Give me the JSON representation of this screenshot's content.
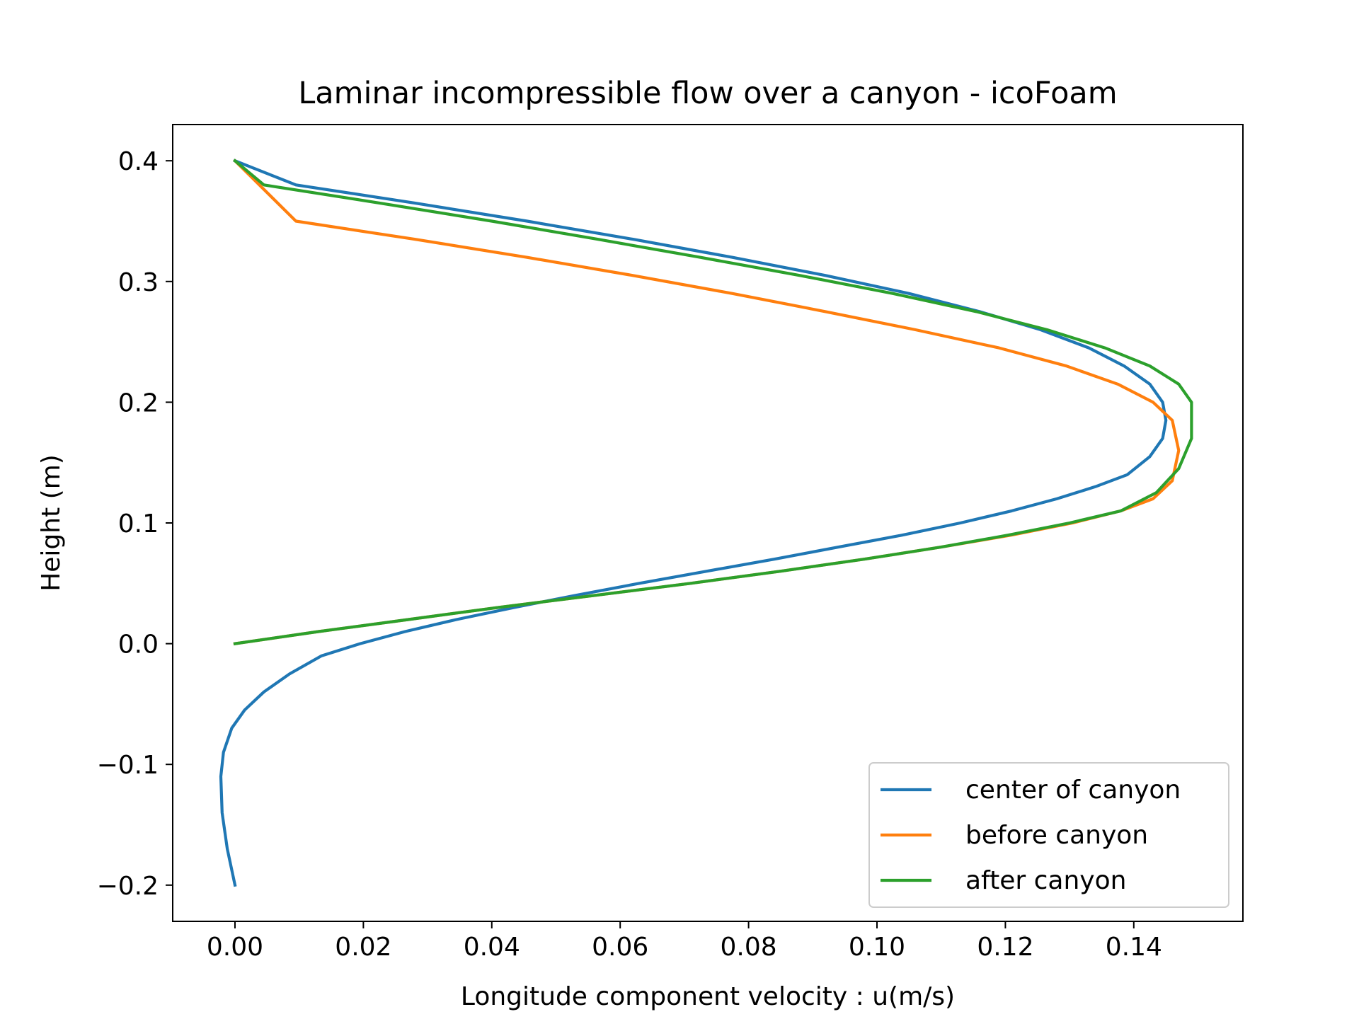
{
  "chart_data": {
    "type": "line",
    "title": "Laminar incompressible flow over a canyon - icoFoam",
    "xlabel": "Longitude component velocity : u(m/s)",
    "ylabel": "Height (m)",
    "xlim": [
      -0.0097,
      0.157
    ],
    "ylim": [
      -0.23,
      0.43
    ],
    "xticks": [
      0.0,
      0.02,
      0.04,
      0.06,
      0.08,
      0.1,
      0.12,
      0.14
    ],
    "xtick_labels": [
      "0.00",
      "0.02",
      "0.04",
      "0.06",
      "0.08",
      "0.10",
      "0.12",
      "0.14"
    ],
    "yticks": [
      -0.2,
      -0.1,
      0.0,
      0.1,
      0.2,
      0.3,
      0.4
    ],
    "ytick_labels": [
      "−0.2",
      "−0.1",
      "0.0",
      "0.1",
      "0.2",
      "0.3",
      "0.4"
    ],
    "grid": false,
    "legend_position": "lower right",
    "series": [
      {
        "name": "center of canyon",
        "color": "#1f77b4",
        "x": [
          0.0,
          -0.0012,
          -0.002,
          -0.0022,
          -0.0018,
          -0.0005,
          0.0015,
          0.0045,
          0.0085,
          0.0135,
          0.0195,
          0.0265,
          0.0345,
          0.0435,
          0.053,
          0.063,
          0.0735,
          0.084,
          0.094,
          0.104,
          0.113,
          0.121,
          0.128,
          0.134,
          0.139,
          0.1425,
          0.1445,
          0.145,
          0.1445,
          0.1425,
          0.1385,
          0.133,
          0.1255,
          0.116,
          0.105,
          0.092,
          0.0775,
          0.062,
          0.0455,
          0.028,
          0.0095,
          0.0
        ],
        "y": [
          -0.2,
          -0.17,
          -0.14,
          -0.11,
          -0.09,
          -0.07,
          -0.055,
          -0.04,
          -0.025,
          -0.01,
          0.0,
          0.01,
          0.02,
          0.03,
          0.04,
          0.05,
          0.06,
          0.07,
          0.08,
          0.09,
          0.1,
          0.11,
          0.12,
          0.13,
          0.14,
          0.155,
          0.17,
          0.185,
          0.2,
          0.215,
          0.23,
          0.245,
          0.26,
          0.275,
          0.29,
          0.305,
          0.32,
          0.335,
          0.35,
          0.365,
          0.38,
          0.4
        ]
      },
      {
        "name": "before canyon",
        "color": "#ff7f0e",
        "x": [
          0.0,
          0.013,
          0.027,
          0.041,
          0.056,
          0.071,
          0.085,
          0.098,
          0.11,
          0.121,
          0.1305,
          0.138,
          0.143,
          0.146,
          0.147,
          0.146,
          0.143,
          0.1375,
          0.1295,
          0.119,
          0.106,
          0.092,
          0.0775,
          0.062,
          0.0455,
          0.028,
          0.0095,
          0.0
        ],
        "y": [
          0.0,
          0.01,
          0.02,
          0.03,
          0.04,
          0.05,
          0.06,
          0.07,
          0.08,
          0.09,
          0.1,
          0.11,
          0.12,
          0.135,
          0.16,
          0.185,
          0.2,
          0.215,
          0.23,
          0.245,
          0.26,
          0.275,
          0.29,
          0.305,
          0.32,
          0.335,
          0.35,
          0.4
        ]
      },
      {
        "name": "after canyon",
        "color": "#2ca02c",
        "x": [
          0.0,
          0.013,
          0.027,
          0.041,
          0.056,
          0.071,
          0.085,
          0.098,
          0.11,
          0.1205,
          0.13,
          0.138,
          0.1435,
          0.147,
          0.149,
          0.149,
          0.147,
          0.1425,
          0.1355,
          0.1265,
          0.1155,
          0.1025,
          0.088,
          0.0725,
          0.0565,
          0.04,
          0.0225,
          0.0045,
          0.0
        ],
        "y": [
          0.0,
          0.01,
          0.02,
          0.03,
          0.04,
          0.05,
          0.06,
          0.07,
          0.08,
          0.09,
          0.1,
          0.11,
          0.125,
          0.145,
          0.17,
          0.2,
          0.215,
          0.23,
          0.245,
          0.26,
          0.275,
          0.29,
          0.305,
          0.32,
          0.335,
          0.35,
          0.365,
          0.38,
          0.4
        ]
      }
    ]
  }
}
